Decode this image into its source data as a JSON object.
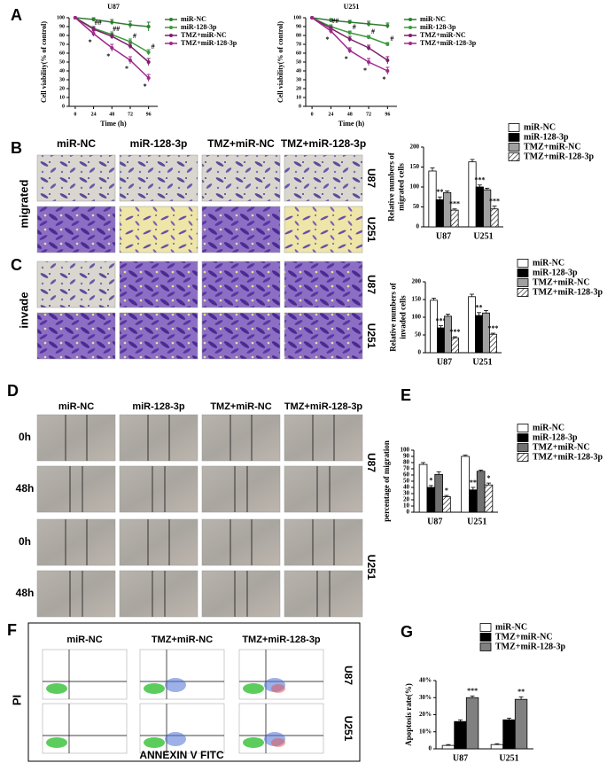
{
  "panel_letters": [
    "A",
    "B",
    "C",
    "D",
    "E",
    "F",
    "G"
  ],
  "migration_images": {
    "columns": [
      "miR-NC",
      "miR-128-3p",
      "TMZ+miR-NC",
      "TMZ+miR-128-3p"
    ],
    "row_label": "migrated",
    "cell_lines": [
      "U87",
      "U251"
    ]
  },
  "invasion_images": {
    "row_label": "invade",
    "cell_lines": [
      "U87",
      "U251"
    ]
  },
  "wound_images": {
    "columns": [
      "miR-NC",
      "miR-128-3p",
      "TMZ+miR-NC",
      "TMZ+miR-128-3p"
    ],
    "times": [
      "0h",
      "48h"
    ],
    "cell_lines": [
      "U87",
      "U251"
    ]
  },
  "flow_images": {
    "columns": [
      "miR-NC",
      "TMZ+miR-NC",
      "TMZ+miR-128-3p"
    ],
    "y_label": "PI",
    "x_label": "ANNEXIN V FITC",
    "cell_lines": [
      "U87",
      "U251"
    ]
  },
  "chart_data": [
    {
      "type": "line",
      "title": "U87",
      "xlabel": "Time (h)",
      "ylabel": "Cell viability(% of control)",
      "x": [
        0,
        24,
        48,
        72,
        96
      ],
      "xlim": [
        -8,
        108
      ],
      "xticks": [
        0,
        24,
        48,
        72,
        96
      ],
      "ylim": [
        0,
        100
      ],
      "yticks": [
        0,
        10,
        20,
        30,
        40,
        50,
        60,
        70,
        80,
        90,
        100
      ],
      "series": [
        {
          "name": "miR-NC",
          "color": "#2e7d32",
          "values": [
            100,
            98,
            95,
            92,
            90
          ],
          "errors": [
            0,
            2,
            3,
            4,
            5
          ],
          "sig": [
            null,
            null,
            null,
            null,
            null
          ]
        },
        {
          "name": "miR-128-3p",
          "color": "#3c9a3c",
          "values": [
            100,
            88,
            81,
            73,
            61
          ],
          "errors": [
            0,
            2,
            3,
            3,
            3
          ],
          "sig": [
            null,
            "##",
            "##",
            "#",
            "#"
          ]
        },
        {
          "name": "TMZ+miR-NC",
          "color": "#7b1f6a",
          "values": [
            100,
            87,
            79,
            68,
            50
          ],
          "errors": [
            0,
            3,
            3,
            3,
            4
          ],
          "sig": [
            null,
            null,
            null,
            null,
            null
          ]
        },
        {
          "name": "TMZ+miR-128-3p",
          "color": "#a0288c",
          "values": [
            100,
            82,
            66,
            52,
            32
          ],
          "errors": [
            0,
            3,
            4,
            4,
            4
          ],
          "sig": [
            null,
            "*",
            "*",
            "*",
            "*"
          ]
        }
      ]
    },
    {
      "type": "line",
      "title": "U251",
      "xlabel": "Time (h)",
      "ylabel": "Cell viability(% of control)",
      "x": [
        0,
        24,
        48,
        72,
        96
      ],
      "xlim": [
        -8,
        108
      ],
      "xticks": [
        0,
        24,
        48,
        72,
        96
      ],
      "ylim": [
        0,
        100
      ],
      "yticks": [
        0,
        10,
        20,
        30,
        40,
        50,
        60,
        70,
        80,
        90,
        100
      ],
      "series": [
        {
          "name": "miR-NC",
          "color": "#2e7d32",
          "values": [
            100,
            97,
            95,
            93,
            91
          ],
          "errors": [
            0,
            2,
            2,
            3,
            3
          ],
          "sig": [
            null,
            null,
            null,
            null,
            null
          ]
        },
        {
          "name": "miR-128-3p",
          "color": "#3c9a3c",
          "values": [
            100,
            90,
            83,
            78,
            70
          ],
          "errors": [
            0,
            2,
            2,
            2,
            2
          ],
          "sig": [
            null,
            "##",
            "#",
            "#",
            "#"
          ]
        },
        {
          "name": "TMZ+miR-NC",
          "color": "#7b1f6a",
          "values": [
            100,
            88,
            76,
            66,
            52
          ],
          "errors": [
            0,
            2,
            3,
            3,
            4
          ],
          "sig": [
            null,
            null,
            null,
            null,
            null
          ]
        },
        {
          "name": "TMZ+miR-128-3p",
          "color": "#a0288c",
          "values": [
            100,
            85,
            63,
            50,
            40
          ],
          "errors": [
            0,
            3,
            3,
            4,
            4
          ],
          "sig": [
            null,
            "*",
            "*",
            "*",
            "*"
          ]
        }
      ]
    },
    {
      "type": "bar",
      "ylabel": [
        "Relative numbers of",
        "migrated cells"
      ],
      "categories": [
        "U87",
        "U251"
      ],
      "ylim": [
        0,
        200
      ],
      "yticks": [
        0,
        50,
        100,
        150,
        200
      ],
      "series": [
        {
          "name": "miR-NC",
          "color": "#ffffff",
          "values": [
            140,
            163
          ],
          "errors": [
            8,
            6
          ],
          "sig": [
            null,
            null
          ]
        },
        {
          "name": "miR-128-3p",
          "color": "#000000",
          "values": [
            68,
            100
          ],
          "errors": [
            7,
            5
          ],
          "sig": [
            "**",
            "***"
          ]
        },
        {
          "name": "TMZ+miR-NC",
          "color": "#a0a0a0",
          "values": [
            86,
            93
          ],
          "errors": [
            4,
            4
          ],
          "sig": [
            null,
            null
          ]
        },
        {
          "name": "TMZ+miR-128-3p",
          "color": "#ffffff",
          "pattern": "hatch",
          "values": [
            42,
            45
          ],
          "errors": [
            3,
            7
          ],
          "sig": [
            "***",
            "***"
          ]
        }
      ]
    },
    {
      "type": "bar",
      "ylabel": [
        "Relative numbers of",
        "invaded cells"
      ],
      "categories": [
        "U87",
        "U251"
      ],
      "ylim": [
        0,
        200
      ],
      "yticks": [
        0,
        50,
        100,
        150,
        200
      ],
      "series": [
        {
          "name": "miR-NC",
          "color": "#ffffff",
          "values": [
            148,
            158
          ],
          "errors": [
            6,
            7
          ],
          "sig": [
            null,
            null
          ]
        },
        {
          "name": "miR-128-3p",
          "color": "#000000",
          "values": [
            70,
            105
          ],
          "errors": [
            6,
            8
          ],
          "sig": [
            "***",
            "**"
          ]
        },
        {
          "name": "TMZ+miR-NC",
          "color": "#a0a0a0",
          "values": [
            103,
            112
          ],
          "errors": [
            6,
            7
          ],
          "sig": [
            null,
            null
          ]
        },
        {
          "name": "TMZ+miR-128-3p",
          "color": "#ffffff",
          "pattern": "hatch",
          "values": [
            42,
            52
          ],
          "errors": [
            3,
            3
          ],
          "sig": [
            "***",
            "***"
          ]
        }
      ]
    },
    {
      "type": "bar",
      "ylabel": [
        "percentage of migration"
      ],
      "categories": [
        "U87",
        "U251"
      ],
      "ylim": [
        0,
        100
      ],
      "yticks": [
        0,
        10,
        20,
        30,
        40,
        50,
        60,
        70,
        80,
        90,
        100
      ],
      "series": [
        {
          "name": "miR-NC",
          "color": "#ffffff",
          "values": [
            77,
            90
          ],
          "errors": [
            3,
            2
          ],
          "sig": [
            null,
            null
          ]
        },
        {
          "name": "miR-128-3p",
          "color": "#000000",
          "values": [
            40,
            36
          ],
          "errors": [
            3,
            4
          ],
          "sig": [
            "*",
            "**"
          ]
        },
        {
          "name": "TMZ+miR-NC",
          "color": "#707070",
          "values": [
            61,
            66
          ],
          "errors": [
            4,
            2
          ],
          "sig": [
            null,
            null
          ]
        },
        {
          "name": "TMZ+miR-128-3p",
          "color": "#ffffff",
          "pattern": "hatch",
          "values": [
            25,
            44
          ],
          "errors": [
            2,
            3
          ],
          "sig": [
            "*",
            "*"
          ]
        }
      ]
    },
    {
      "type": "bar",
      "ylabel": [
        "Apoptosis rate(%)"
      ],
      "categories": [
        "U87",
        "U251"
      ],
      "ylim": [
        0,
        40
      ],
      "yticks": [
        0,
        {
          "value": 10,
          "label": "10%"
        },
        {
          "value": 20,
          "label": "20%"
        },
        {
          "value": 30,
          "label": "30%"
        },
        {
          "value": 40,
          "label": "40%"
        }
      ],
      "series": [
        {
          "name": "miR-NC",
          "color": "#ffffff",
          "values": [
            2,
            2.5
          ],
          "errors": [
            0.5,
            0.5
          ],
          "sig": [
            null,
            null
          ]
        },
        {
          "name": "TMZ+miR-NC",
          "color": "#000000",
          "values": [
            16,
            17
          ],
          "errors": [
            1,
            1
          ],
          "sig": [
            null,
            null
          ]
        },
        {
          "name": "TMZ+miR-128-3p",
          "color": "#808080",
          "values": [
            30,
            29
          ],
          "errors": [
            1,
            1.5
          ],
          "sig": [
            "***",
            "**"
          ]
        }
      ]
    }
  ]
}
